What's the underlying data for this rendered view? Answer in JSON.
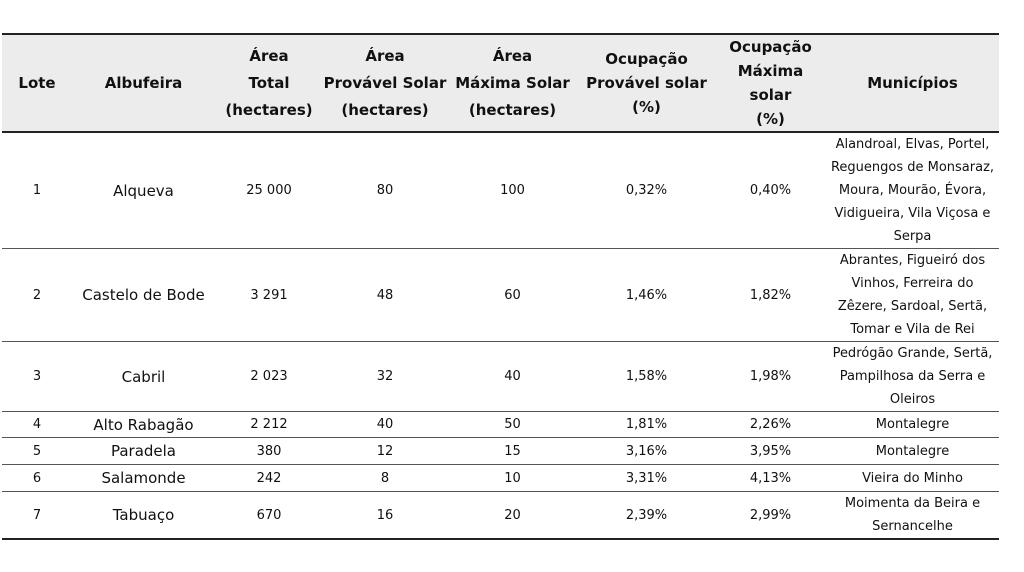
{
  "table": {
    "headers": {
      "lote": [
        "Lote"
      ],
      "albufeira": [
        "Albufeira"
      ],
      "area_total": [
        "Área",
        "Total",
        "(hectares)"
      ],
      "area_provavel": [
        "Área",
        "Provável Solar",
        "(hectares)"
      ],
      "area_maxima": [
        "Área",
        "Máxima Solar",
        "(hectares)"
      ],
      "ocup_provavel": [
        "Ocupação",
        "Provável solar",
        "(%)"
      ],
      "ocup_maxima": [
        "Ocupação",
        "Máxima solar",
        "(%)"
      ],
      "municipios": [
        "Municípios"
      ]
    },
    "rows": [
      {
        "lote": "1",
        "albufeira": "Alqueva",
        "area_total": "25 000",
        "area_provavel": "80",
        "area_maxima": "100",
        "ocup_provavel": "0,32%",
        "ocup_maxima": "0,40%",
        "municipios": [
          "Alandroal, Elvas, Portel,",
          "Reguengos de Monsaraz,",
          "Moura, Mourão, Évora,",
          "Vidigueira, Vila Viçosa e",
          "Serpa"
        ]
      },
      {
        "lote": "2",
        "albufeira": "Castelo de Bode",
        "area_total": "3 291",
        "area_provavel": "48",
        "area_maxima": "60",
        "ocup_provavel": "1,46%",
        "ocup_maxima": "1,82%",
        "municipios": [
          "Abrantes, Figueiró dos",
          "Vinhos, Ferreira do",
          "Zêzere, Sardoal, Sertã,",
          "Tomar e Vila de Rei"
        ]
      },
      {
        "lote": "3",
        "albufeira": "Cabril",
        "area_total": "2 023",
        "area_provavel": "32",
        "area_maxima": "40",
        "ocup_provavel": "1,58%",
        "ocup_maxima": "1,98%",
        "municipios": [
          "Pedrógão Grande, Sertã,",
          "Pampilhosa da Serra e",
          "Oleiros"
        ]
      },
      {
        "lote": "4",
        "albufeira": "Alto Rabagão",
        "area_total": "2 212",
        "area_provavel": "40",
        "area_maxima": "50",
        "ocup_provavel": "1,81%",
        "ocup_maxima": "2,26%",
        "municipios": [
          "Montalegre"
        ]
      },
      {
        "lote": "5",
        "albufeira": "Paradela",
        "area_total": "380",
        "area_provavel": "12",
        "area_maxima": "15",
        "ocup_provavel": "3,16%",
        "ocup_maxima": "3,95%",
        "municipios": [
          "Montalegre"
        ]
      },
      {
        "lote": "6",
        "albufeira": "Salamonde",
        "area_total": "242",
        "area_provavel": "8",
        "area_maxima": "10",
        "ocup_provavel": "3,31%",
        "ocup_maxima": "4,13%",
        "municipios": [
          "Vieira do Minho"
        ]
      },
      {
        "lote": "7",
        "albufeira": "Tabuaço",
        "area_total": "670",
        "area_provavel": "16",
        "area_maxima": "20",
        "ocup_provavel": "2,39%",
        "ocup_maxima": "2,99%",
        "municipios": [
          "Moimenta da Beira e",
          "Sernancelhe"
        ]
      }
    ]
  }
}
